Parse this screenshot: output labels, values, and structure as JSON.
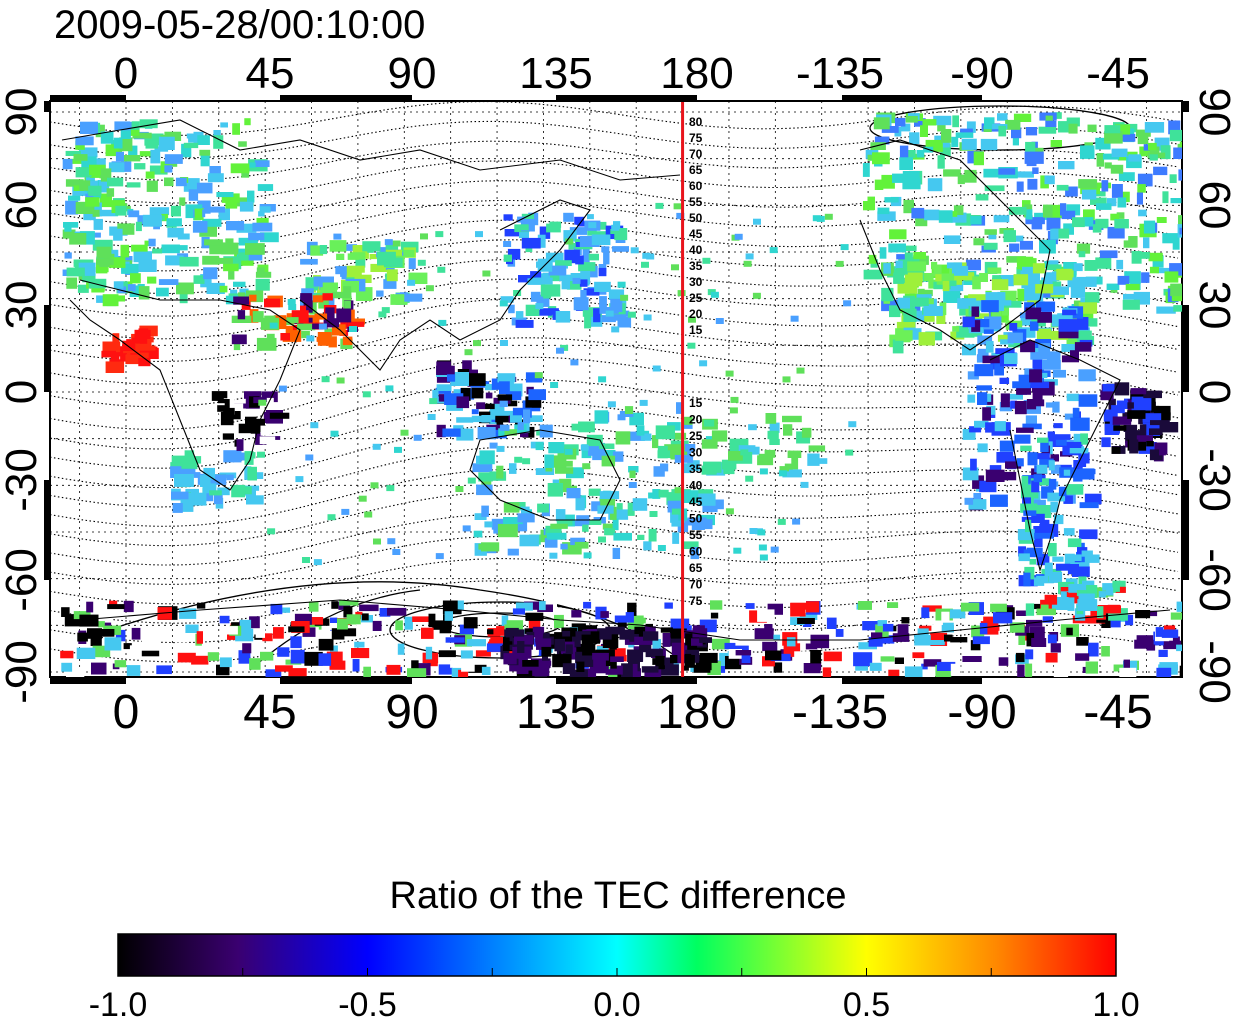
{
  "timestamp": "2009-05-28/00:10:00",
  "map": {
    "top_lon_ticks": [
      "0",
      "45",
      "90",
      "135",
      "180",
      "-135",
      "-90",
      "-45"
    ],
    "bottom_lon_ticks": [
      "0",
      "45",
      "90",
      "135",
      "180",
      "-135",
      "-90",
      "-45"
    ],
    "left_lat_ticks": [
      "90",
      "60",
      "30",
      "0",
      "-30",
      "-60",
      "-90"
    ],
    "right_lat_ticks": [
      "90",
      "60",
      "30",
      "0",
      "-30",
      "-60",
      "-90"
    ],
    "meridian_marker_lon": 180,
    "meridian_marker_color": "#e8141c",
    "contour_labels_north": [
      "80",
      "75",
      "70",
      "65",
      "60",
      "55",
      "50",
      "45",
      "40",
      "35",
      "30",
      "25",
      "20",
      "15"
    ],
    "contour_labels_south": [
      "15",
      "20",
      "25",
      "30",
      "35",
      "40",
      "45",
      "50",
      "55",
      "60",
      "65",
      "70",
      "75"
    ]
  },
  "colorbar": {
    "title": "Ratio of the TEC difference",
    "tick_labels": [
      "-1.0",
      "-0.5",
      "0.0",
      "0.5",
      "1.0"
    ],
    "range": [
      -1.0,
      1.0
    ],
    "colors": [
      "#000000",
      "#3a0070",
      "#0000ff",
      "#00ffff",
      "#00ff00",
      "#ffff00",
      "#ff8800",
      "#ff0000"
    ]
  }
}
